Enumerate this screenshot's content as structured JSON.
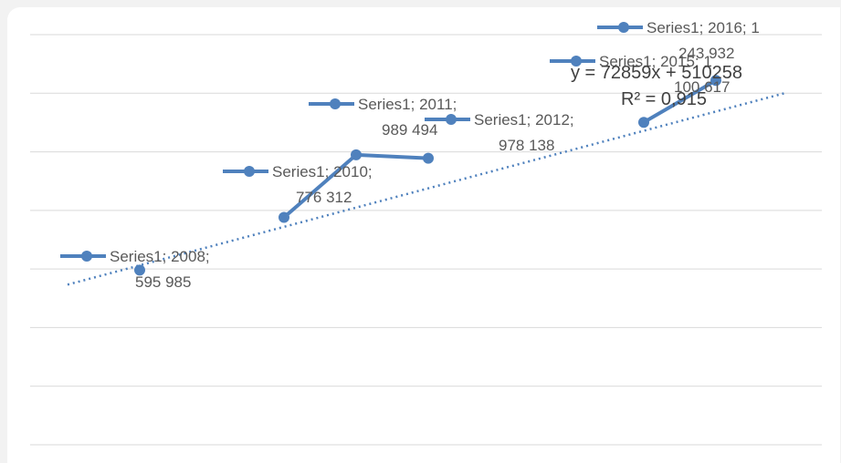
{
  "chart_data": {
    "type": "scatter",
    "series": [
      {
        "name": "Series1",
        "points": [
          {
            "x": 2008,
            "y": 595985
          },
          {
            "x": 2010,
            "y": 776312
          },
          {
            "x": 2011,
            "y": 989494
          },
          {
            "x": 2012,
            "y": 978138
          },
          {
            "x": 2015,
            "y": 1100617
          },
          {
            "x": 2016,
            "y": 1243932
          }
        ]
      }
    ],
    "data_labels": [
      {
        "series": "Series1",
        "x": 2008,
        "lines": [
          "Series1; 2008;",
          "595 985"
        ]
      },
      {
        "series": "Series1",
        "x": 2010,
        "lines": [
          "Series1; 2010;",
          "776 312"
        ]
      },
      {
        "series": "Series1",
        "x": 2011,
        "lines": [
          "Series1; 2011;",
          "989 494"
        ]
      },
      {
        "series": "Series1",
        "x": 2012,
        "lines": [
          "Series1; 2012;",
          "978 138"
        ]
      },
      {
        "series": "Series1",
        "x": 2015,
        "lines": [
          "Series1; 2015; 1",
          "100 617"
        ]
      },
      {
        "series": "Series1",
        "x": 2016,
        "lines": [
          "Series1; 2016; 1",
          "243 932"
        ]
      }
    ],
    "trendline": {
      "type": "linear",
      "slope": 72859,
      "intercept": 510258,
      "equation": "y = 72859x + 510258",
      "r_squared": "R² = 0,915",
      "x_start": 0.5,
      "x_end": 9.5
    },
    "ylim": [
      0,
      1400000
    ],
    "grid": true,
    "colors": {
      "series": "#4f81bd",
      "grid": "#d9d9d9",
      "label_text": "#595959"
    }
  }
}
